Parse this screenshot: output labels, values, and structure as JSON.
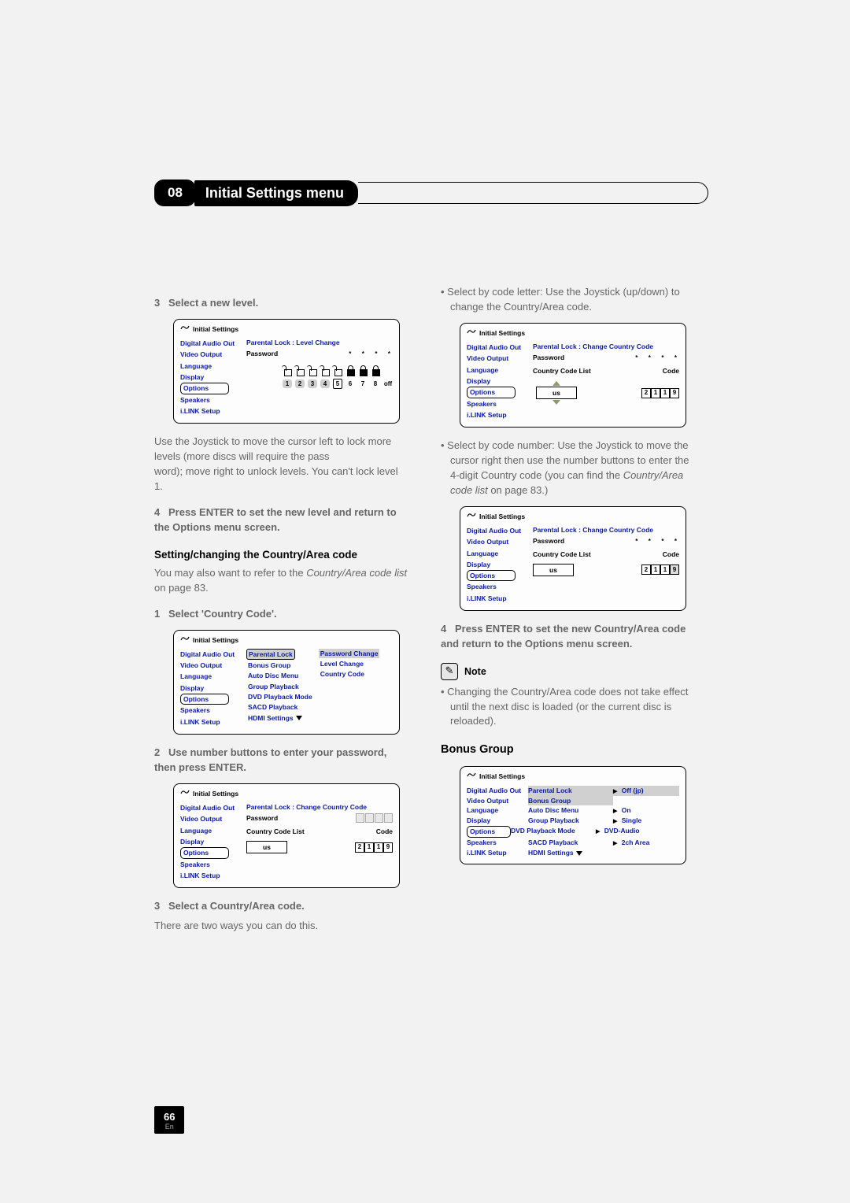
{
  "chapter": {
    "number": "08",
    "title": "Initial Settings menu"
  },
  "sidebar_items": [
    "Digital Audio Out",
    "Video Output",
    "Language",
    "Display",
    "Options",
    "Speakers",
    "i.LINK Setup"
  ],
  "left": {
    "step3": "3",
    "step3_text": "Select a new level.",
    "panel_level": {
      "title": "Initial Settings",
      "subtitle": "Parental Lock : Level Change",
      "password_label": "Password",
      "numbers": [
        "1",
        "2",
        "3",
        "4",
        "5",
        "6",
        "7",
        "8",
        "off"
      ],
      "selected_index": 4,
      "locked_from": 5
    },
    "para1a": "Use the Joystick to move the cursor left to lock more levels (more discs will require the pass",
    "para1b": "word); move right to unlock levels. You can't lock level 1.",
    "step4": "4",
    "step4_text": "Press ENTER to set the new level and return to the Options menu screen.",
    "sec_head": "Setting/changing the Country/Area code",
    "sec_body_a": "You may also want to refer to the ",
    "sec_body_i": "Country/Area code list",
    "sec_body_b": " on page 83.",
    "step_cc1": "1",
    "step_cc1_text": "Select 'Country Code'.",
    "panel_cc": {
      "title": "Initial Settings",
      "col2": [
        "Parental Lock",
        "Bonus Group",
        "Auto Disc Menu",
        "Group Playback",
        "DVD Playback Mode",
        "SACD Playback",
        "HDMI Settings"
      ],
      "col3": [
        "Password Change",
        "Level Change",
        "Country Code"
      ]
    },
    "step_cc2": "2",
    "step_cc2_text": "Use number buttons to enter your password, then press ENTER.",
    "panel_pw": {
      "title": "Initial Settings",
      "subtitle": "Parental Lock : Change Country Code",
      "password_label": "Password",
      "h_list": "Country Code List",
      "h_code": "Code",
      "us": "us",
      "code": [
        "2",
        "1",
        "1",
        "9"
      ]
    },
    "step_cc3": "3",
    "step_cc3_text": "Select a Country/Area code.",
    "step_cc3_body": "There are two ways you can do this."
  },
  "right": {
    "bullet1": "Select by code letter: Use the Joystick (up/down) to change the Country/Area code.",
    "panel_sel_letter": {
      "title": "Initial Settings",
      "subtitle": "Parental Lock : Change Country Code",
      "password_label": "Password",
      "h_list": "Country Code List",
      "h_code": "Code",
      "us": "us",
      "code": [
        "2",
        "1",
        "1",
        "9"
      ]
    },
    "bullet2a": "Select by code number: Use the Joystick to move the cursor right then use the number buttons to enter the 4-digit Country code (you can find the ",
    "bullet2i": "Country/Area code list",
    "bullet2b": " on page 83.)",
    "panel_sel_num": {
      "title": "Initial Settings",
      "subtitle": "Parental Lock : Change Country Code",
      "password_label": "Password",
      "h_list": "Country Code List",
      "h_code": "Code",
      "us": "us",
      "code": [
        "2",
        "1",
        "1",
        "9"
      ]
    },
    "step4": "4",
    "step4_text": "Press ENTER to set the new Country/Area code and return to the Options menu screen.",
    "note_label": "Note",
    "note_body": "Changing the Country/Area code does not take effect until the next disc is loaded (or the current disc is reloaded).",
    "bonus_head": "Bonus Group",
    "panel_bonus": {
      "title": "Initial Settings",
      "rows": [
        {
          "c1": "Digital Audio Out",
          "c2": "Parental  Lock",
          "c3": "Off (jp)",
          "hl": true
        },
        {
          "c1": "Video Output",
          "c2": "Bonus Group",
          "c3": "",
          "bar": true
        },
        {
          "c1": "Language",
          "c2": "Auto Disc Menu",
          "c3": "On"
        },
        {
          "c1": "Display",
          "c2": "Group Playback",
          "c3": "Single"
        },
        {
          "c1": "Options",
          "c2": "DVD Playback Mode",
          "c3": "DVD-Audio",
          "sel": true
        },
        {
          "c1": "Speakers",
          "c2": "SACD Playback",
          "c3": "2ch Area"
        },
        {
          "c1": "i.LINK Setup",
          "c2": "HDMI Settings",
          "c3": ""
        }
      ]
    }
  },
  "page": {
    "num": "66",
    "lang": "En"
  },
  "colors": {
    "text_grey": "#666666",
    "link_blue": "#0a1aa8",
    "pill_grey": "#cfcfcf",
    "arrow_green": "#8a9b6a"
  }
}
